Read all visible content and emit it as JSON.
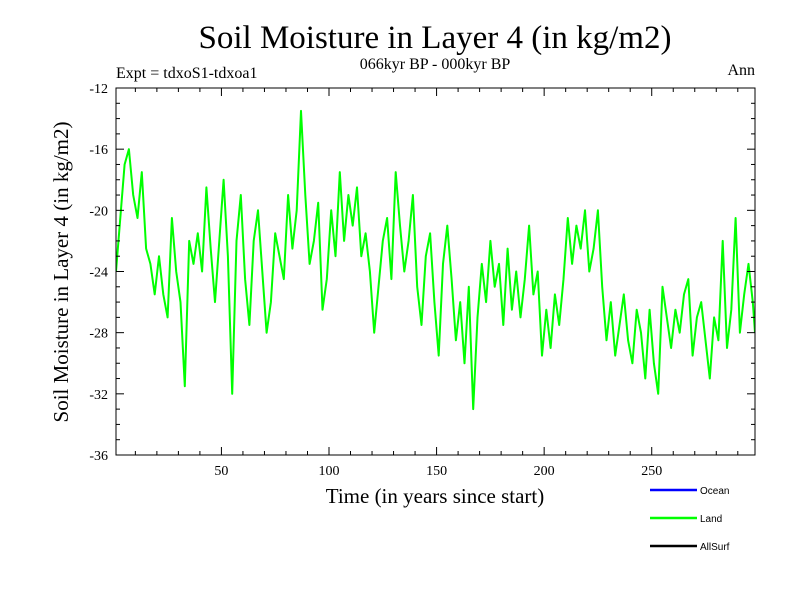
{
  "chart_data": {
    "type": "line",
    "title": "Soil Moisture in Layer 4 (in kg/m2)",
    "subtitle": "066kyr BP - 000kyr BP",
    "experiment_label": "Expt = tdxoS1-tdxoa1",
    "season_label": "Ann",
    "xlabel": "Time (in years since start)",
    "ylabel": "Soil Moisture in Layer 4 (in kg/m2)",
    "xlim": [
      1,
      298
    ],
    "ylim": [
      -36,
      -12
    ],
    "x_ticks": [
      50,
      100,
      150,
      200,
      250
    ],
    "y_ticks": [
      -12,
      -16,
      -20,
      -24,
      -28,
      -32,
      -36
    ],
    "grid": false,
    "legend_position": "bottom-right",
    "legend": [
      {
        "name": "Ocean",
        "color": "#0000ff"
      },
      {
        "name": "Land",
        "color": "#00ff00"
      },
      {
        "name": "AllSurf",
        "color": "#000000"
      }
    ],
    "series": [
      {
        "name": "Land",
        "color": "#00ff00",
        "x": [
          1,
          3,
          5,
          7,
          9,
          11,
          13,
          15,
          17,
          19,
          21,
          23,
          25,
          27,
          29,
          31,
          33,
          35,
          37,
          39,
          41,
          43,
          45,
          47,
          49,
          51,
          53,
          55,
          57,
          59,
          61,
          63,
          65,
          67,
          69,
          71,
          73,
          75,
          77,
          79,
          81,
          83,
          85,
          87,
          89,
          91,
          93,
          95,
          97,
          99,
          101,
          103,
          105,
          107,
          109,
          111,
          113,
          115,
          117,
          119,
          121,
          123,
          125,
          127,
          129,
          131,
          133,
          135,
          137,
          139,
          141,
          143,
          145,
          147,
          149,
          151,
          153,
          155,
          157,
          159,
          161,
          163,
          165,
          167,
          169,
          171,
          173,
          175,
          177,
          179,
          181,
          183,
          185,
          187,
          189,
          191,
          193,
          195,
          197,
          199,
          201,
          203,
          205,
          207,
          209,
          211,
          213,
          215,
          217,
          219,
          221,
          223,
          225,
          227,
          229,
          231,
          233,
          235,
          237,
          239,
          241,
          243,
          245,
          247,
          249,
          251,
          253,
          255,
          257,
          259,
          261,
          263,
          265,
          267,
          269,
          271,
          273,
          275,
          277,
          279,
          281,
          283,
          285,
          287,
          289,
          291,
          293,
          295,
          297,
          298
        ],
        "values": [
          -24.0,
          -20.5,
          -17.0,
          -16.0,
          -19.0,
          -20.5,
          -17.5,
          -22.5,
          -23.5,
          -25.5,
          -23.0,
          -25.5,
          -27.0,
          -20.5,
          -24.0,
          -26.0,
          -31.5,
          -22.0,
          -23.5,
          -21.5,
          -24.0,
          -18.5,
          -22.5,
          -26.0,
          -22.0,
          -18.0,
          -23.0,
          -32.0,
          -22.0,
          -19.0,
          -24.5,
          -27.5,
          -22.0,
          -20.0,
          -24.0,
          -28.0,
          -26.0,
          -21.5,
          -23.0,
          -24.5,
          -19.0,
          -22.5,
          -20.0,
          -13.5,
          -19.0,
          -23.5,
          -22.0,
          -19.5,
          -26.5,
          -24.5,
          -20.0,
          -23.0,
          -17.5,
          -22.0,
          -19.0,
          -21.0,
          -18.5,
          -23.0,
          -21.5,
          -24.0,
          -28.0,
          -25.0,
          -22.0,
          -20.5,
          -24.5,
          -17.5,
          -21.0,
          -24.0,
          -22.0,
          -19.0,
          -25.0,
          -27.5,
          -23.0,
          -21.5,
          -26.0,
          -29.5,
          -23.5,
          -21.0,
          -24.5,
          -28.5,
          -26.0,
          -30.0,
          -25.0,
          -33.0,
          -27.0,
          -23.5,
          -26.0,
          -22.0,
          -25.0,
          -23.5,
          -27.5,
          -22.5,
          -26.5,
          -24.0,
          -27.0,
          -24.5,
          -21.0,
          -25.5,
          -24.0,
          -29.5,
          -26.5,
          -29.0,
          -25.5,
          -27.5,
          -24.5,
          -20.5,
          -23.5,
          -21.0,
          -22.5,
          -20.0,
          -24.0,
          -22.5,
          -20.0,
          -25.0,
          -28.5,
          -26.0,
          -29.5,
          -27.5,
          -25.5,
          -28.5,
          -30.0,
          -26.5,
          -28.0,
          -31.0,
          -26.5,
          -30.0,
          -32.0,
          -25.0,
          -27.0,
          -29.0,
          -26.5,
          -28.0,
          -25.5,
          -24.5,
          -29.5,
          -27.0,
          -26.0,
          -28.5,
          -31.0,
          -27.0,
          -28.5,
          -22.0,
          -29.0,
          -26.5,
          -20.5,
          -28.0,
          -25.5,
          -23.5,
          -26.0,
          -28.0
        ]
      }
    ]
  }
}
